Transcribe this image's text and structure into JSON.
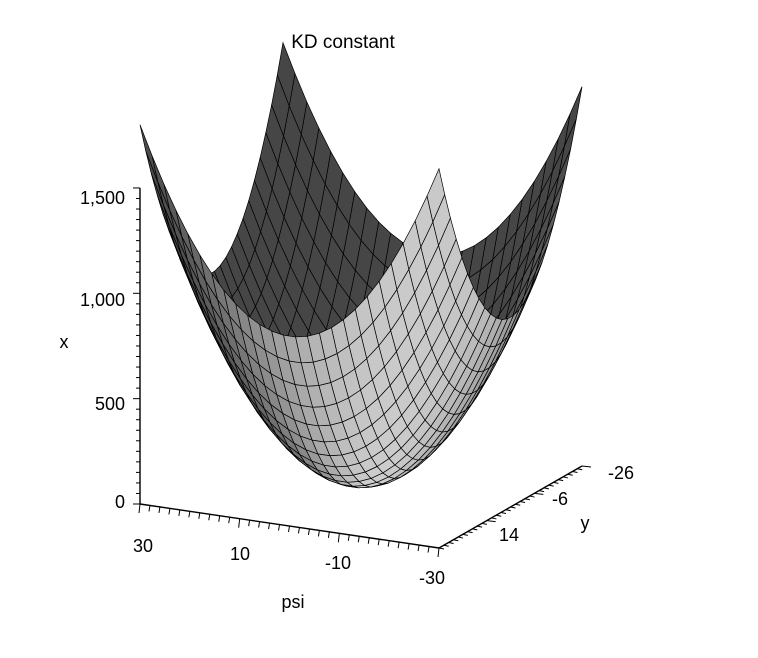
{
  "chart_data": {
    "type": "surface",
    "title": "KD constant",
    "xlabel": "psi",
    "ylabel": "y",
    "zlabel": "x",
    "psi_range": [
      -30,
      30
    ],
    "y_range": [
      -26,
      34
    ],
    "z_range": [
      0,
      1500
    ],
    "psi_ticks": [
      "30",
      "10",
      "-10",
      "-30"
    ],
    "y_ticks": [
      "-26",
      "-6",
      "14"
    ],
    "z_ticks": [
      "0",
      "500",
      "1,000",
      "1,500"
    ],
    "surface": {
      "shape": "paraboloid",
      "minimum": {
        "psi": 0,
        "y": 4,
        "x": 0
      },
      "corner_values": [
        {
          "psi": 30,
          "y": -26,
          "x": 1800
        },
        {
          "psi": -30,
          "y": -26,
          "x": 1800
        },
        {
          "psi": 30,
          "y": 34,
          "x": 1800
        },
        {
          "psi": -30,
          "y": 34,
          "x": 1800
        }
      ],
      "edge_midpoints": [
        {
          "psi": 0,
          "y": -26,
          "x": 900
        },
        {
          "psi": 0,
          "y": 34,
          "x": 900
        },
        {
          "psi": 30,
          "y": 4,
          "x": 900
        },
        {
          "psi": -30,
          "y": 4,
          "x": 900
        }
      ],
      "grid": [
        25,
        25
      ],
      "color": "#cccccc",
      "gridline_color": "#000000",
      "shading": "zgrayscale"
    }
  }
}
